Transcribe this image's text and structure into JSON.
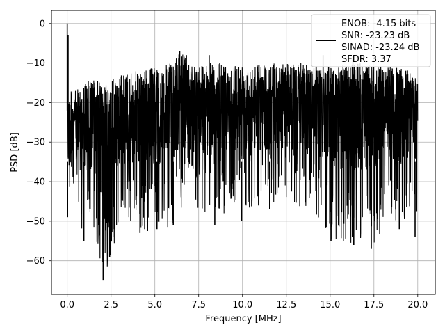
{
  "chart_data": {
    "type": "line",
    "xlabel": "Frequency [MHz]",
    "ylabel": "PSD [dB]",
    "xlim": [
      -0.9,
      21.0
    ],
    "ylim": [
      -68.5,
      3.3
    ],
    "xticks": [
      0.0,
      2.5,
      5.0,
      7.5,
      10.0,
      12.5,
      15.0,
      17.5,
      20.0
    ],
    "xtick_labels": [
      "0.0",
      "2.5",
      "5.0",
      "7.5",
      "10.0",
      "12.5",
      "15.0",
      "17.5",
      "20.0"
    ],
    "yticks": [
      0,
      -10,
      -20,
      -30,
      -40,
      -50,
      -60
    ],
    "ytick_labels": [
      "0",
      "−10",
      "−20",
      "−30",
      "−40",
      "−50",
      "−60"
    ],
    "grid": true,
    "legend_position": "top-right",
    "legend_entries": [
      "ENOB: -4.15 bits",
      "SNR: -23.23 dB",
      "SINAD: -23.24 dB",
      "SFDR: 3.37"
    ],
    "series": [
      {
        "color": "#000000",
        "x": [
          0.0,
          0.05,
          0.1,
          0.5,
          1.0,
          1.5,
          2.0,
          2.5,
          3.0,
          4.0,
          5.0,
          6.0,
          6.5,
          7.0,
          8.0,
          9.0,
          10.0,
          11.0,
          12.0,
          13.0,
          14.0,
          15.0,
          16.0,
          17.0,
          18.0,
          19.0,
          20.0
        ],
        "upper": [
          0.0,
          -18,
          -17,
          -17,
          -15,
          -14,
          -15,
          -14,
          -13,
          -12,
          -11,
          -10,
          -7,
          -10,
          -10,
          -10,
          -10,
          -10,
          -10,
          -10,
          -10,
          -11,
          -10,
          -10,
          -11,
          -11,
          -13
        ],
        "lower": [
          -35,
          -49,
          -48,
          -47,
          -55,
          -52,
          -65,
          -59,
          -50,
          -52,
          -53,
          -51,
          -48,
          -47,
          -49,
          -48,
          -47,
          -46,
          -46,
          -47,
          -47,
          -55,
          -56,
          -57,
          -54,
          -52,
          -48
        ]
      }
    ],
    "deep_spikes": [
      {
        "x": 0.02,
        "y": -49
      },
      {
        "x": 0.95,
        "y": -55
      },
      {
        "x": 1.78,
        "y": -51
      },
      {
        "x": 2.05,
        "y": -65
      },
      {
        "x": 2.42,
        "y": -59
      },
      {
        "x": 2.68,
        "y": -52
      },
      {
        "x": 4.15,
        "y": -53
      },
      {
        "x": 4.42,
        "y": -52
      },
      {
        "x": 5.12,
        "y": -52
      },
      {
        "x": 6.05,
        "y": -51
      },
      {
        "x": 8.42,
        "y": -51
      },
      {
        "x": 9.95,
        "y": -50
      },
      {
        "x": 11.55,
        "y": -47
      },
      {
        "x": 15.05,
        "y": -55
      },
      {
        "x": 16.35,
        "y": -56
      },
      {
        "x": 17.35,
        "y": -57
      },
      {
        "x": 18.95,
        "y": -52
      },
      {
        "x": 19.85,
        "y": -54
      }
    ],
    "peak_spikes": [
      {
        "x": 0.0,
        "y": 0.0
      },
      {
        "x": 0.05,
        "y": -3
      },
      {
        "x": 6.42,
        "y": -7
      },
      {
        "x": 6.8,
        "y": -8
      },
      {
        "x": 8.1,
        "y": -8
      },
      {
        "x": 14.6,
        "y": -8
      },
      {
        "x": 16.3,
        "y": -9
      }
    ]
  }
}
